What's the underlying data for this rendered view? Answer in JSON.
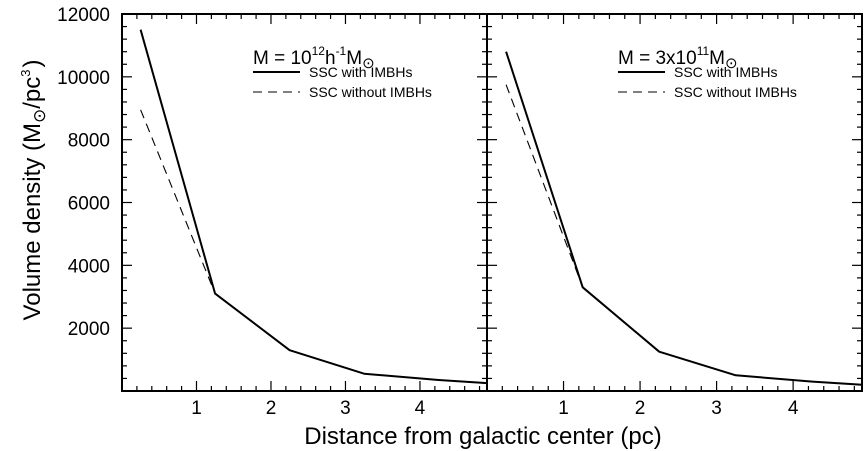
{
  "chart_data": {
    "type": "line",
    "xlabel": "Distance from galactic center (pc)",
    "ylabel": "Volume density (M",
    "ylabel_unit_sep": "/pc",
    "ylabel_close": ")",
    "ylabel_sup": "3",
    "xlim": [
      0,
      4.9
    ],
    "ylim": [
      0,
      12000
    ],
    "x_ticks": [
      1,
      2,
      3,
      4
    ],
    "y_ticks": [
      2000,
      4000,
      6000,
      8000,
      10000,
      12000
    ],
    "panels": [
      {
        "title": {
          "prefix": "M = 10",
          "sup1": "12",
          "mid": "h",
          "sup2": "-1",
          "suffix": "M"
        },
        "series": [
          {
            "name": "SSC with IMBHs",
            "style": "solid",
            "x": [
              0.25,
              1.25,
              2.25,
              3.25,
              4.25,
              4.9
            ],
            "y": [
              11500,
              3100,
              1300,
              550,
              350,
              250
            ]
          },
          {
            "name": "SSC without IMBHs",
            "style": "dashed",
            "x": [
              0.25,
              1.25,
              2.25,
              3.25,
              4.25,
              4.9
            ],
            "y": [
              8950,
              3100,
              1300,
              550,
              350,
              250
            ]
          }
        ]
      },
      {
        "title": {
          "prefix": "M = 3x10",
          "sup1": "11",
          "mid": "",
          "sup2": "",
          "suffix": "M"
        },
        "series": [
          {
            "name": "SSC with IMBHs",
            "style": "solid",
            "x": [
              0.25,
              1.25,
              2.25,
              3.25,
              4.25,
              4.9
            ],
            "y": [
              10800,
              3300,
              1250,
              500,
              300,
              200
            ]
          },
          {
            "name": "SSC without IMBHs",
            "style": "dashed",
            "x": [
              0.25,
              1.25,
              2.25,
              3.25,
              4.25,
              4.9
            ],
            "y": [
              9750,
              3300,
              1250,
              500,
              300,
              200
            ]
          }
        ]
      }
    ]
  }
}
